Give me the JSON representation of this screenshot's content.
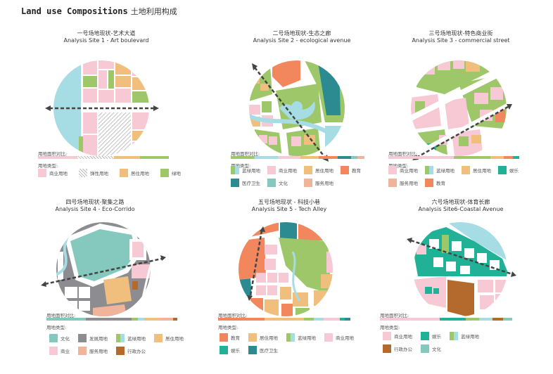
{
  "title": {
    "en": "Land use Compositions",
    "cn": "土地利用构成"
  },
  "colors": {
    "commercial": "#f6c9d4",
    "residential": "#f0bf7d",
    "green": "#9dc768",
    "water": "#a6dce4",
    "education": "#f2875e",
    "medical": "#2c8b90",
    "culture": "#84c8be",
    "service": "#f0b49b",
    "entertainment": "#21b196",
    "development": "#8d8c91",
    "administrative": "#b56a2d",
    "road": "#ffffff"
  },
  "sites": [
    {
      "cn": "一号场地现状-艺术大道",
      "en": "Analysis Site 1  - Art boulevard",
      "ratio_label": "用地面积对比:",
      "ratio": [
        {
          "type": "commercial",
          "share": 0.3
        },
        {
          "type": "hatch",
          "share": 0.28
        },
        {
          "type": "residential",
          "share": 0.2
        },
        {
          "type": "green",
          "share": 0.22
        }
      ],
      "types_label": "用地类型:",
      "legend": [
        {
          "type": "commercial",
          "label": "商业用地"
        },
        {
          "type": "hatch",
          "label": "弹性用地"
        },
        {
          "type": "residential",
          "label": "居住用地"
        },
        {
          "type": "green",
          "label": "绿地"
        }
      ]
    },
    {
      "cn": "二号场地现状-生态之廊",
      "en": "Analysis Site 2  - ecological avenue",
      "ratio_label": "用地面积对比:",
      "ratio": [
        {
          "type": "green-lblue",
          "share": 0.35
        },
        {
          "type": "commercial",
          "share": 0.17
        },
        {
          "type": "residential",
          "share": 0.14
        },
        {
          "type": "education",
          "share": 0.14
        },
        {
          "type": "medical",
          "share": 0.1
        },
        {
          "type": "culture",
          "share": 0.05
        },
        {
          "type": "service",
          "share": 0.05
        }
      ],
      "types_label": "用地类型:",
      "legend": [
        {
          "type": "green-lblue",
          "label": "蓝绿用地"
        },
        {
          "type": "commercial",
          "label": "商业用地"
        },
        {
          "type": "residential",
          "label": "居住用地"
        },
        {
          "type": "education",
          "label": "教育"
        },
        {
          "type": "medical",
          "label": "医疗卫生"
        },
        {
          "type": "culture",
          "label": "文化"
        },
        {
          "type": "service",
          "label": "服务用地"
        }
      ]
    },
    {
      "cn": "三号场地现状-特色商业街",
      "en": "Analysis Site 3  - commercial street",
      "ratio_label": "用地面积对比:",
      "ratio": [
        {
          "type": "commercial",
          "share": 0.5
        },
        {
          "type": "green",
          "share": 0.28
        },
        {
          "type": "residential",
          "share": 0.1
        },
        {
          "type": "education",
          "share": 0.07
        },
        {
          "type": "entertainment",
          "share": 0.05
        }
      ],
      "types_label": "用地类型:",
      "legend": [
        {
          "type": "commercial",
          "label": "商业用地"
        },
        {
          "type": "green-lblue",
          "label": "蓝绿用地"
        },
        {
          "type": "residential",
          "label": "居住用地"
        },
        {
          "type": "entertainment",
          "label": "娱乐"
        },
        {
          "type": "service",
          "label": "服务用地"
        },
        {
          "type": "education",
          "label": "教育"
        }
      ]
    },
    {
      "cn": "四号场地现状-聚集之路",
      "en": "Analysis Site 4  - Eco-Corrido",
      "ratio_label": "用地面积对比:",
      "ratio": [
        {
          "type": "culture",
          "share": 0.3
        },
        {
          "type": "development",
          "share": 0.35
        },
        {
          "type": "green-lblue",
          "share": 0.1
        },
        {
          "type": "residential",
          "share": 0.12
        },
        {
          "type": "service",
          "share": 0.1
        },
        {
          "type": "administrative",
          "share": 0.03
        }
      ],
      "types_label": "用地类型:",
      "legend": [
        {
          "type": "culture",
          "label": "文化"
        },
        {
          "type": "development",
          "label": "发展用地"
        },
        {
          "type": "green-lblue",
          "label": "蓝绿用地"
        },
        {
          "type": "residential",
          "label": "居住用地"
        },
        {
          "type": "commercial",
          "label": "商业"
        },
        {
          "type": "service",
          "label": "服务用地"
        },
        {
          "type": "administrative",
          "label": "行政办公"
        }
      ]
    },
    {
      "cn": "五号场地现状 - 科技小巷",
      "en": "Analysis Site 5  - Tech Alley",
      "ratio_label": "用地面积对比:",
      "ratio": [
        {
          "type": "education",
          "share": 0.35
        },
        {
          "type": "residential",
          "share": 0.3
        },
        {
          "type": "green-lblue",
          "share": 0.15
        },
        {
          "type": "commercial",
          "share": 0.12
        },
        {
          "type": "entertainment",
          "share": 0.04
        },
        {
          "type": "medical",
          "share": 0.04
        }
      ],
      "types_label": "用地类型:",
      "legend": [
        {
          "type": "education",
          "label": "教育"
        },
        {
          "type": "residential",
          "label": "居住用地"
        },
        {
          "type": "green-lblue",
          "label": "蓝绿用地"
        },
        {
          "type": "commercial",
          "label": "商业用地"
        },
        {
          "type": "entertainment",
          "label": "娱乐"
        },
        {
          "type": "medical",
          "label": "医疗卫生"
        }
      ]
    },
    {
      "cn": "六号场地现状-体育长廊",
      "en": "Analysis Site6-Coastal Avenue",
      "ratio_label": "用地面积对比:",
      "ratio": [
        {
          "type": "commercial",
          "share": 0.45
        },
        {
          "type": "entertainment",
          "share": 0.2
        },
        {
          "type": "green-lblue",
          "share": 0.2
        },
        {
          "type": "administrative",
          "share": 0.08
        },
        {
          "type": "culture",
          "share": 0.07
        }
      ],
      "types_label": "用地类型:",
      "legend": [
        {
          "type": "commercial",
          "label": "商业用地"
        },
        {
          "type": "entertainment",
          "label": "娱乐"
        },
        {
          "type": "green-lblue",
          "label": "蓝绿用地"
        },
        {
          "type": "administrative",
          "label": "行政办公"
        },
        {
          "type": "culture",
          "label": "文化"
        }
      ]
    }
  ]
}
